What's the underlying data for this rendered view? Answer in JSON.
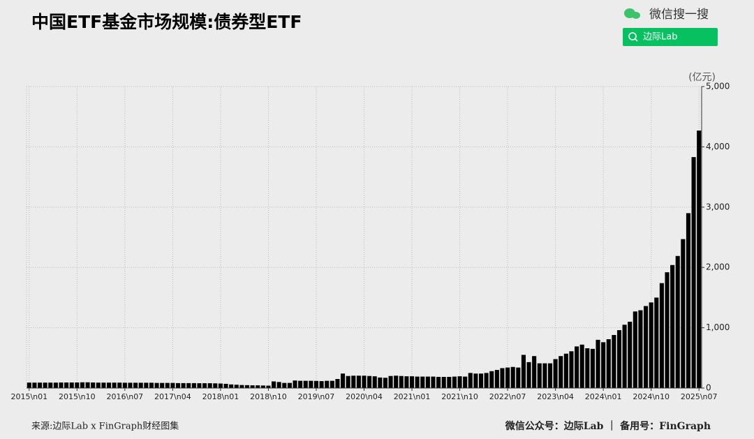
{
  "chart_data": {
    "type": "bar",
    "title": "中国ETF基金市场规模:债券型ETF",
    "unit_label": "(亿元)",
    "categories": [
      "2015\\n01",
      null,
      null,
      null,
      null,
      null,
      null,
      null,
      null,
      "2015\\n10",
      null,
      null,
      null,
      null,
      null,
      null,
      null,
      null,
      "2016\\n07",
      null,
      null,
      null,
      null,
      null,
      null,
      null,
      null,
      "2017\\n04",
      null,
      null,
      null,
      null,
      null,
      null,
      null,
      null,
      "2018\\n01",
      null,
      null,
      null,
      null,
      null,
      null,
      null,
      null,
      "2018\\n10",
      null,
      null,
      null,
      null,
      null,
      null,
      null,
      null,
      "2019\\n07",
      null,
      null,
      null,
      null,
      null,
      null,
      null,
      null,
      "2020\\n04",
      null,
      null,
      null,
      null,
      null,
      null,
      null,
      null,
      "2021\\n01",
      null,
      null,
      null,
      null,
      null,
      null,
      null,
      null,
      "2021\\n10",
      null,
      null,
      null,
      null,
      null,
      null,
      null,
      null,
      "2022\\n07",
      null,
      null,
      null,
      null,
      null,
      null,
      null,
      null,
      "2023\\n04",
      null,
      null,
      null,
      null,
      null,
      null,
      null,
      null,
      "2024\\n01",
      null,
      null,
      null,
      null,
      null,
      null,
      null,
      null,
      "2024\\n10",
      null,
      null,
      null,
      null,
      null,
      null,
      null,
      null,
      "2025\\n07"
    ],
    "values": [
      90,
      90,
      90,
      90,
      90,
      90,
      92,
      92,
      92,
      92,
      95,
      95,
      92,
      90,
      90,
      90,
      90,
      90,
      88,
      88,
      88,
      88,
      88,
      88,
      85,
      85,
      85,
      85,
      82,
      82,
      82,
      82,
      80,
      80,
      80,
      78,
      75,
      70,
      60,
      55,
      50,
      48,
      45,
      45,
      42,
      40,
      110,
      100,
      85,
      85,
      125,
      120,
      120,
      120,
      118,
      115,
      120,
      120,
      150,
      240,
      200,
      205,
      205,
      205,
      200,
      195,
      175,
      170,
      200,
      205,
      200,
      195,
      195,
      190,
      190,
      190,
      190,
      185,
      185,
      185,
      190,
      195,
      190,
      250,
      240,
      240,
      250,
      280,
      300,
      330,
      340,
      350,
      340,
      550,
      430,
      530,
      410,
      410,
      410,
      480,
      530,
      570,
      610,
      690,
      720,
      660,
      650,
      800,
      760,
      810,
      880,
      960,
      1050,
      1100,
      1270,
      1290,
      1360,
      1420,
      1500,
      1740,
      1920,
      2040,
      2190,
      2470,
      2900,
      3830,
      4270
    ],
    "color": "#000000",
    "ylim": [
      0,
      5000
    ],
    "yticks": [
      0,
      {
        "value": 1000,
        "label": "1,000"
      },
      {
        "value": 2000,
        "label": "2,000"
      },
      {
        "value": 3000,
        "label": "3,000"
      },
      {
        "value": 4000,
        "label": "4,000"
      },
      {
        "value": 5000,
        "label": "5,000"
      }
    ],
    "grid": true
  },
  "badge": {
    "search": "微信搜一搜",
    "account": "边际Lab"
  },
  "footer": {
    "source": "来源:边际Lab x FinGraph财经图集",
    "right": "微信公众号：边际Lab ｜ 备用号：FinGraph"
  }
}
